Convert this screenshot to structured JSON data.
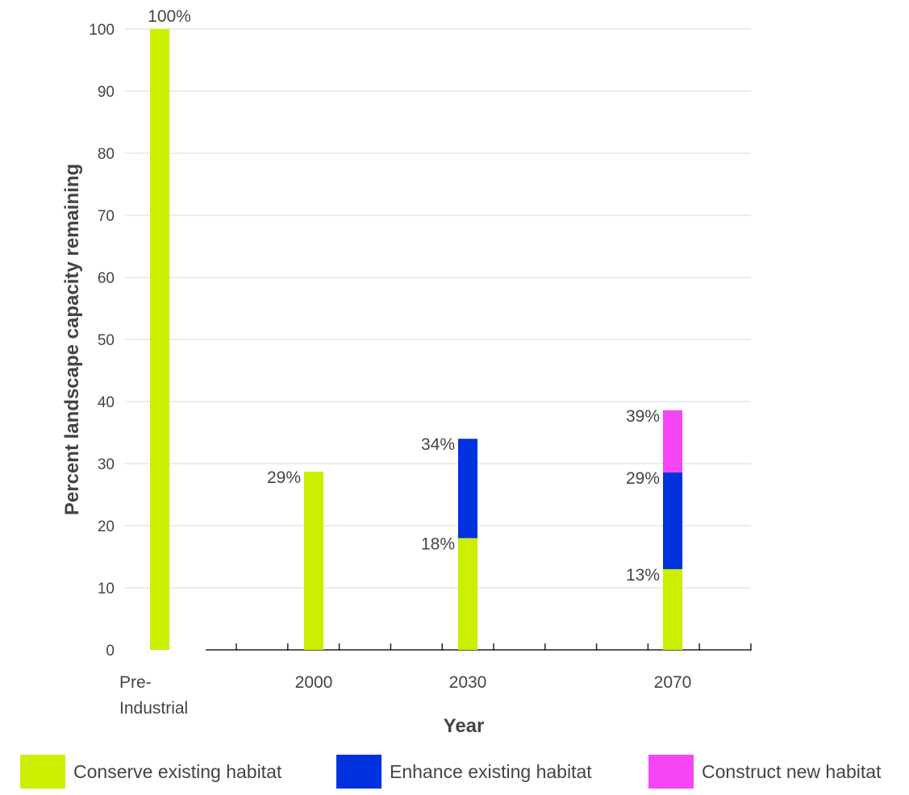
{
  "chart_data": {
    "type": "bar",
    "stacked": true,
    "title": "",
    "xlabel": "Year",
    "ylabel": "Percent landscape capacity remaining",
    "ylim": [
      0,
      100
    ],
    "yticks": [
      0,
      10,
      20,
      30,
      40,
      50,
      60,
      70,
      80,
      90,
      100
    ],
    "grid": true,
    "categories": [
      "Pre-\nIndustrial",
      "2000",
      "2030",
      "2070"
    ],
    "series": [
      {
        "name": "Conserve existing habitat",
        "color": "#ccee00",
        "values": [
          100,
          28.7,
          18,
          13
        ]
      },
      {
        "name": "Enhance existing habitat",
        "color": "#0033dd",
        "values": [
          0,
          0,
          16,
          15.6
        ]
      },
      {
        "name": "Construct new habitat",
        "color": "#f545f5",
        "values": [
          0,
          0,
          0,
          10
        ]
      }
    ],
    "data_labels": [
      {
        "category": 0,
        "value": 100,
        "text": "100%"
      },
      {
        "category": 1,
        "value": 28.7,
        "text": "29%"
      },
      {
        "category": 2,
        "value": 18,
        "text": "18%"
      },
      {
        "category": 2,
        "value": 34,
        "text": "34%"
      },
      {
        "category": 3,
        "value": 13,
        "text": "13%"
      },
      {
        "category": 3,
        "value": 28.6,
        "text": "29%"
      },
      {
        "category": 3,
        "value": 38.6,
        "text": "39%"
      }
    ],
    "legend_position": "bottom"
  }
}
